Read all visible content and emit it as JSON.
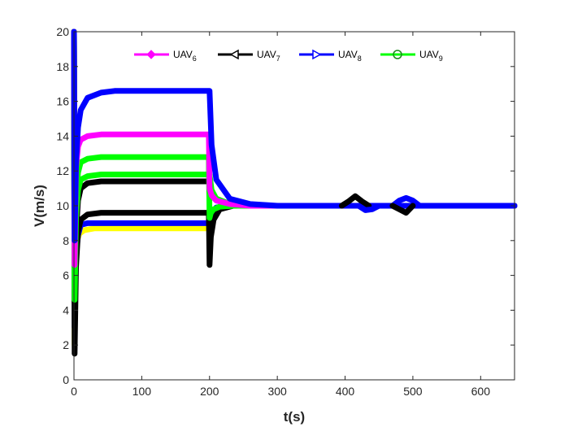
{
  "chart_data": {
    "type": "line",
    "title": "",
    "xlabel": "t(s)",
    "ylabel": "V(m/s)",
    "xlim": [
      0,
      650
    ],
    "ylim": [
      0,
      20
    ],
    "xticks": [
      0,
      100,
      200,
      300,
      400,
      500,
      600
    ],
    "yticks": [
      0,
      2,
      4,
      6,
      8,
      10,
      12,
      14,
      16,
      18,
      20
    ],
    "grid": false,
    "legend_position": "top",
    "legend": [
      {
        "name": "UAV",
        "sub": "6",
        "color": "#ff00ff",
        "marker": "diamond"
      },
      {
        "name": "UAV",
        "sub": "7",
        "color": "#000000",
        "marker": "triangle-left"
      },
      {
        "name": "UAV",
        "sub": "8",
        "color": "#0000ff",
        "marker": "triangle-right"
      },
      {
        "name": "UAV",
        "sub": "9",
        "color": "#00ff00",
        "marker": "circle"
      }
    ],
    "series": [
      {
        "name": "yellow",
        "color": "#ffff00",
        "x": [
          0,
          1,
          2,
          4,
          8,
          15,
          30,
          60,
          100,
          150,
          199,
          200,
          201,
          205,
          215,
          230,
          260,
          300,
          400,
          500,
          650
        ],
        "y": [
          20,
          2.0,
          6.8,
          7.9,
          8.4,
          8.6,
          8.7,
          8.7,
          8.7,
          8.7,
          8.7,
          8.7,
          9.4,
          9.7,
          9.9,
          10.0,
          10.0,
          10.0,
          10.0,
          10.0,
          10.0
        ]
      },
      {
        "name": "blue-flat",
        "color": "#0000ff",
        "x": [
          0,
          1,
          3,
          6,
          10,
          20,
          40,
          100,
          199,
          200,
          203,
          210,
          230,
          260,
          650
        ],
        "y": [
          20,
          3.0,
          7.2,
          8.3,
          8.9,
          9.0,
          9.0,
          9.0,
          9.0,
          9.0,
          9.6,
          9.9,
          10.0,
          10.0,
          10.0
        ]
      },
      {
        "name": "black-low",
        "color": "#000000",
        "x": [
          0,
          1,
          3,
          6,
          10,
          20,
          40,
          100,
          199,
          200,
          202,
          206,
          215,
          235,
          260,
          300,
          650
        ],
        "y": [
          20,
          1.5,
          6.5,
          8.5,
          9.2,
          9.5,
          9.6,
          9.6,
          9.6,
          6.6,
          8.2,
          9.2,
          9.8,
          10.0,
          10.0,
          10.0,
          10.0
        ]
      },
      {
        "name": "black-high",
        "color": "#000000",
        "x": [
          0,
          1,
          3,
          6,
          10,
          20,
          40,
          100,
          199,
          200,
          203,
          210,
          230,
          260,
          300,
          650
        ],
        "y": [
          20,
          4.4,
          8.5,
          10.3,
          11.0,
          11.3,
          11.4,
          11.4,
          11.4,
          11.4,
          10.8,
          10.4,
          10.1,
          10.0,
          10.0,
          10.0
        ]
      },
      {
        "name": "green-low",
        "color": "#00ff00",
        "x": [
          0,
          1,
          3,
          6,
          10,
          20,
          40,
          100,
          199,
          200,
          203,
          210,
          230,
          260,
          650
        ],
        "y": [
          20,
          4.6,
          9.3,
          10.9,
          11.5,
          11.7,
          11.8,
          11.8,
          11.8,
          11.8,
          10.9,
          10.4,
          10.1,
          10.0,
          10.0
        ]
      },
      {
        "name": "green-high",
        "color": "#00ff00",
        "x": [
          0,
          1,
          3,
          6,
          10,
          20,
          40,
          100,
          199,
          200,
          202,
          206,
          215,
          235,
          260,
          650
        ],
        "y": [
          20,
          5.2,
          10.5,
          11.9,
          12.5,
          12.7,
          12.8,
          12.8,
          12.8,
          9.3,
          9.6,
          9.8,
          9.95,
          10.0,
          10.0,
          10.0
        ]
      },
      {
        "name": "magenta",
        "color": "#ff00ff",
        "x": [
          0,
          1,
          3,
          6,
          10,
          20,
          40,
          100,
          199,
          200,
          203,
          210,
          230,
          260,
          300,
          650
        ],
        "y": [
          20,
          6.6,
          12.2,
          13.4,
          13.8,
          14.0,
          14.1,
          14.1,
          14.1,
          11.0,
          10.6,
          10.3,
          10.1,
          10.0,
          10.0,
          10.0
        ]
      },
      {
        "name": "blue-high",
        "color": "#0000ff",
        "x": [
          0,
          1,
          3,
          6,
          10,
          20,
          40,
          60,
          100,
          199,
          200,
          203,
          210,
          230,
          260,
          300,
          650
        ],
        "y": [
          20,
          8.0,
          12.5,
          14.5,
          15.5,
          16.2,
          16.5,
          16.6,
          16.6,
          16.6,
          16.6,
          13.5,
          11.5,
          10.4,
          10.1,
          10.0,
          10.0
        ]
      },
      {
        "name": "black-bump",
        "color": "#000000",
        "x": [
          395,
          405,
          415,
          425,
          435
        ],
        "y": [
          10.0,
          10.25,
          10.55,
          10.25,
          10.0
        ]
      },
      {
        "name": "blue-bump",
        "color": "#0000ff",
        "x": [
          470,
          480,
          490,
          500,
          510
        ],
        "y": [
          10.0,
          10.3,
          10.45,
          10.3,
          10.0
        ]
      },
      {
        "name": "blue-dip",
        "color": "#0000ff",
        "x": [
          420,
          430,
          440,
          450
        ],
        "y": [
          10.0,
          9.75,
          9.8,
          10.0
        ]
      },
      {
        "name": "black-dip",
        "color": "#000000",
        "x": [
          470,
          480,
          490,
          500
        ],
        "y": [
          10.0,
          9.8,
          9.6,
          10.0
        ]
      }
    ]
  }
}
